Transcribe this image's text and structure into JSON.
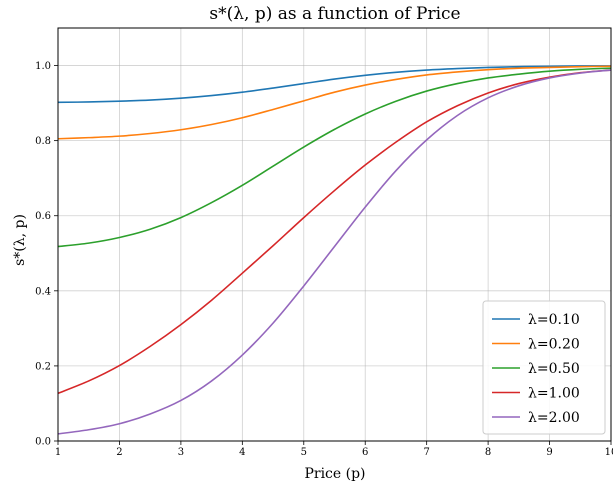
{
  "chart_data": {
    "type": "line",
    "title": "s*(λ, p) as a function of Price",
    "xlabel": "Price (p)",
    "ylabel": "s*(λ, p)",
    "xlim": [
      1,
      10
    ],
    "ylim": [
      0.0,
      1.1
    ],
    "xticks": [
      "1",
      "2",
      "3",
      "4",
      "5",
      "6",
      "7",
      "8",
      "9",
      "10"
    ],
    "yticks": [
      "0.0",
      "0.2",
      "0.4",
      "0.6",
      "0.8",
      "1.0"
    ],
    "grid": true,
    "legend_position": "lower-right",
    "x": [
      1,
      1.5,
      2,
      2.5,
      3,
      3.5,
      4,
      4.5,
      5,
      5.5,
      6,
      6.5,
      7,
      7.5,
      8,
      8.5,
      9,
      9.5,
      10
    ],
    "series": [
      {
        "name": "λ=0.10",
        "color": "#1f77b4",
        "values": [
          0.902,
          0.903,
          0.905,
          0.908,
          0.913,
          0.92,
          0.929,
          0.94,
          0.952,
          0.964,
          0.974,
          0.982,
          0.988,
          0.992,
          0.995,
          0.997,
          0.998,
          0.999,
          0.999
        ]
      },
      {
        "name": "λ=0.20",
        "color": "#ff7f0e",
        "values": [
          0.805,
          0.808,
          0.812,
          0.819,
          0.829,
          0.843,
          0.861,
          0.883,
          0.906,
          0.929,
          0.948,
          0.963,
          0.975,
          0.983,
          0.989,
          0.993,
          0.995,
          0.997,
          0.998
        ]
      },
      {
        "name": "λ=0.50",
        "color": "#2ca02c",
        "values": [
          0.518,
          0.527,
          0.542,
          0.564,
          0.595,
          0.635,
          0.681,
          0.732,
          0.783,
          0.83,
          0.871,
          0.905,
          0.932,
          0.952,
          0.967,
          0.977,
          0.985,
          0.99,
          0.993
        ]
      },
      {
        "name": "λ=1.00",
        "color": "#d62728",
        "values": [
          0.127,
          0.16,
          0.201,
          0.252,
          0.31,
          0.375,
          0.447,
          0.52,
          0.595,
          0.667,
          0.735,
          0.796,
          0.85,
          0.893,
          0.927,
          0.952,
          0.969,
          0.981,
          0.988
        ]
      },
      {
        "name": "λ=2.00",
        "color": "#9467bd",
        "values": [
          0.019,
          0.03,
          0.046,
          0.072,
          0.108,
          0.16,
          0.229,
          0.314,
          0.413,
          0.518,
          0.623,
          0.72,
          0.802,
          0.867,
          0.914,
          0.946,
          0.967,
          0.98,
          0.988
        ]
      }
    ]
  }
}
